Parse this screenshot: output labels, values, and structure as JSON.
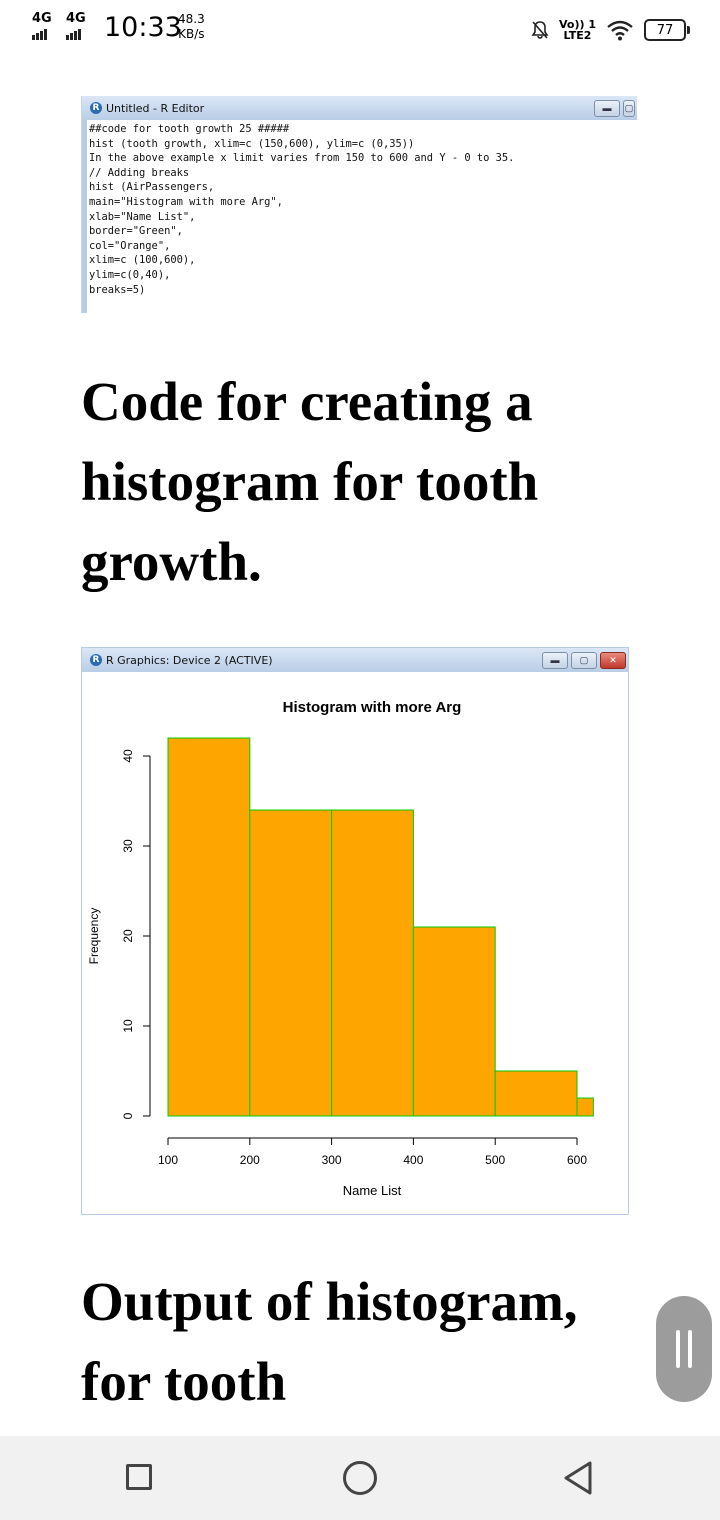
{
  "status_bar": {
    "network1": "4G",
    "network2": "4G",
    "time": "10:33",
    "speed_value": "48.3",
    "speed_unit": "KB/s",
    "volte_top": "Vo)) 1",
    "volte_bottom": "LTE2",
    "battery": "77",
    "icons": [
      "signal-icon",
      "mute-icon",
      "wifi-icon",
      "battery-icon"
    ]
  },
  "editor": {
    "title": "Untitled - R Editor",
    "code": "##code for tooth growth 25 #####\nhist (tooth growth, xlim=c (150,600), ylim=c (0,35))\nIn the above example x limit varies from 150 to 600 and Y - 0 to 35.\n// Adding breaks\nhist (AirPassengers,\nmain=\"Histogram with more Arg\",\nxlab=\"Name List\",\nborder=\"Green\",\ncol=\"Orange\",\nxlim=c (100,600),\nylim=c(0,40),\nbreaks=5)"
  },
  "heading1": "Code for creating a histogram for tooth growth.",
  "graphics_window": {
    "title": "R Graphics: Device 2 (ACTIVE)"
  },
  "chart_data": {
    "type": "bar",
    "title": "Histogram with more Arg",
    "xlabel": "Name List",
    "ylabel": "Frequency",
    "bins": [
      {
        "from": 100,
        "to": 200,
        "count": 42
      },
      {
        "from": 200,
        "to": 300,
        "count": 34
      },
      {
        "from": 300,
        "to": 400,
        "count": 34
      },
      {
        "from": 400,
        "to": 500,
        "count": 21
      },
      {
        "from": 500,
        "to": 600,
        "count": 5
      },
      {
        "from": 600,
        "to": 620,
        "count": 2
      }
    ],
    "xlim": [
      100,
      600
    ],
    "ylim": [
      0,
      40
    ],
    "xticks": [
      100,
      200,
      300,
      400,
      500,
      600
    ],
    "yticks": [
      0,
      10,
      20,
      30,
      40
    ],
    "bar_color": "#FFA500",
    "border_color": "#00CC00",
    "grid": false
  },
  "heading2": "Output of histogram, for tooth",
  "nav": {
    "icons": [
      "recents-square-icon",
      "home-circle-icon",
      "back-triangle-icon"
    ]
  }
}
